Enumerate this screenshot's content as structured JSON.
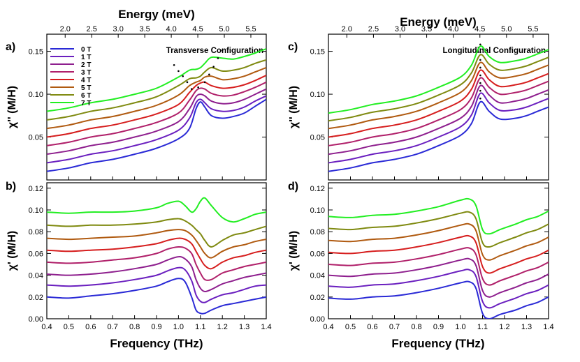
{
  "figure": {
    "xlabel": "Frequency (THz)",
    "top_axis_label": "Energy (meV)"
  },
  "legend": {
    "entries": [
      "0 T",
      "1 T",
      "2 T",
      "3 T",
      "4 T",
      "5 T",
      "6 T",
      "7 T"
    ],
    "colors": [
      "#2a2ad6",
      "#6a1fbf",
      "#8e1f8e",
      "#b0206a",
      "#d61e1e",
      "#b05a10",
      "#7f8a10",
      "#22ee22"
    ]
  },
  "chart_data": [
    {
      "panel": "a)",
      "type": "line",
      "annotation": "Transverse Configuration",
      "ylabel": "χ'' (M/H)",
      "xlim": [
        0.4,
        1.4
      ],
      "ylim": [
        0,
        0.17
      ],
      "yticks": [
        0.05,
        0.1,
        0.15
      ],
      "energy_ticks": [
        2.0,
        2.5,
        3.0,
        3.5,
        4.0,
        4.5,
        5.0,
        5.5
      ],
      "offset_per_field": 0.01,
      "x": [
        0.4,
        0.5,
        0.6,
        0.7,
        0.8,
        0.9,
        1.0,
        1.05,
        1.08,
        1.1,
        1.12,
        1.15,
        1.2,
        1.25,
        1.3,
        1.35,
        1.4
      ],
      "series": [
        {
          "name": "0 T",
          "values": [
            0.01,
            0.014,
            0.02,
            0.024,
            0.03,
            0.037,
            0.048,
            0.06,
            0.083,
            0.091,
            0.085,
            0.075,
            0.072,
            0.074,
            0.078,
            0.086,
            0.094
          ]
        },
        {
          "name": "1 T",
          "values": [
            0.02,
            0.024,
            0.03,
            0.034,
            0.04,
            0.047,
            0.058,
            0.072,
            0.09,
            0.094,
            0.09,
            0.083,
            0.08,
            0.081,
            0.085,
            0.092,
            0.098
          ]
        },
        {
          "name": "2 T",
          "values": [
            0.03,
            0.034,
            0.04,
            0.044,
            0.05,
            0.057,
            0.068,
            0.083,
            0.097,
            0.1,
            0.098,
            0.092,
            0.089,
            0.09,
            0.094,
            0.1,
            0.106
          ]
        },
        {
          "name": "3 T",
          "values": [
            0.04,
            0.044,
            0.05,
            0.054,
            0.06,
            0.067,
            0.078,
            0.093,
            0.104,
            0.107,
            0.106,
            0.101,
            0.098,
            0.099,
            0.103,
            0.108,
            0.114
          ]
        },
        {
          "name": "4 T",
          "values": [
            0.05,
            0.054,
            0.06,
            0.064,
            0.07,
            0.077,
            0.088,
            0.102,
            0.11,
            0.113,
            0.114,
            0.11,
            0.107,
            0.108,
            0.111,
            0.116,
            0.122
          ]
        },
        {
          "name": "5 T",
          "values": [
            0.06,
            0.064,
            0.07,
            0.074,
            0.08,
            0.087,
            0.099,
            0.11,
            0.114,
            0.116,
            0.12,
            0.121,
            0.117,
            0.118,
            0.121,
            0.126,
            0.131
          ]
        },
        {
          "name": "6 T",
          "values": [
            0.07,
            0.074,
            0.08,
            0.084,
            0.09,
            0.097,
            0.11,
            0.118,
            0.119,
            0.121,
            0.126,
            0.131,
            0.127,
            0.128,
            0.131,
            0.136,
            0.14
          ]
        },
        {
          "name": "7 T",
          "values": [
            0.08,
            0.084,
            0.09,
            0.094,
            0.1,
            0.107,
            0.12,
            0.128,
            0.129,
            0.131,
            0.136,
            0.143,
            0.142,
            0.141,
            0.144,
            0.148,
            0.153
          ]
        }
      ],
      "peak_markers": [
        [
          0.98,
          0.134
        ],
        [
          1.0,
          0.127
        ],
        [
          1.02,
          0.121
        ],
        [
          1.04,
          0.114
        ],
        [
          1.06,
          0.106
        ],
        [
          1.09,
          0.108
        ],
        [
          1.12,
          0.114
        ],
        [
          1.14,
          0.123
        ],
        [
          1.16,
          0.132
        ],
        [
          1.18,
          0.142
        ],
        [
          1.2,
          0.151
        ]
      ]
    },
    {
      "panel": "b)",
      "type": "line",
      "ylabel": "χ' (M/H)",
      "xlim": [
        0.4,
        1.4
      ],
      "ylim": [
        0,
        0.125
      ],
      "yticks": [
        0.0,
        0.02,
        0.04,
        0.06,
        0.08,
        0.1,
        0.12
      ],
      "xticks": [
        0.4,
        0.5,
        0.6,
        0.7,
        0.8,
        0.9,
        1.0,
        1.1,
        1.2,
        1.3,
        1.4
      ],
      "offset_per_field": 0.011,
      "x": [
        0.4,
        0.5,
        0.6,
        0.7,
        0.8,
        0.9,
        0.95,
        1.0,
        1.03,
        1.06,
        1.08,
        1.1,
        1.12,
        1.15,
        1.2,
        1.25,
        1.3,
        1.35,
        1.4
      ],
      "series": [
        {
          "name": "0 T",
          "values": [
            0.02,
            0.019,
            0.021,
            0.023,
            0.026,
            0.03,
            0.034,
            0.037,
            0.034,
            0.02,
            0.008,
            0.005,
            0.005,
            0.008,
            0.012,
            0.014,
            0.016,
            0.018,
            0.02
          ]
        },
        {
          "name": "1 T",
          "values": [
            0.031,
            0.03,
            0.031,
            0.033,
            0.036,
            0.04,
            0.044,
            0.047,
            0.045,
            0.035,
            0.022,
            0.016,
            0.015,
            0.018,
            0.022,
            0.024,
            0.027,
            0.03,
            0.031
          ]
        },
        {
          "name": "2 T",
          "values": [
            0.041,
            0.04,
            0.041,
            0.043,
            0.046,
            0.05,
            0.054,
            0.057,
            0.055,
            0.048,
            0.036,
            0.028,
            0.025,
            0.027,
            0.032,
            0.035,
            0.038,
            0.04,
            0.042
          ]
        },
        {
          "name": "3 T",
          "values": [
            0.052,
            0.051,
            0.052,
            0.054,
            0.056,
            0.06,
            0.064,
            0.066,
            0.065,
            0.06,
            0.05,
            0.042,
            0.036,
            0.036,
            0.042,
            0.045,
            0.048,
            0.05,
            0.052
          ]
        },
        {
          "name": "4 T",
          "values": [
            0.063,
            0.062,
            0.063,
            0.064,
            0.066,
            0.069,
            0.072,
            0.074,
            0.073,
            0.069,
            0.062,
            0.055,
            0.049,
            0.046,
            0.052,
            0.056,
            0.058,
            0.061,
            0.063
          ]
        },
        {
          "name": "5 T",
          "values": [
            0.074,
            0.073,
            0.074,
            0.075,
            0.076,
            0.079,
            0.081,
            0.082,
            0.081,
            0.077,
            0.072,
            0.066,
            0.06,
            0.056,
            0.062,
            0.066,
            0.068,
            0.071,
            0.073
          ]
        },
        {
          "name": "6 T",
          "values": [
            0.086,
            0.085,
            0.086,
            0.086,
            0.087,
            0.089,
            0.091,
            0.092,
            0.09,
            0.086,
            0.082,
            0.078,
            0.072,
            0.066,
            0.072,
            0.077,
            0.079,
            0.082,
            0.085
          ]
        },
        {
          "name": "7 T",
          "values": [
            0.098,
            0.097,
            0.098,
            0.098,
            0.099,
            0.102,
            0.106,
            0.108,
            0.104,
            0.098,
            0.101,
            0.108,
            0.111,
            0.104,
            0.093,
            0.089,
            0.092,
            0.096,
            0.098
          ]
        }
      ]
    },
    {
      "panel": "c)",
      "type": "line",
      "annotation": "Longitudinal Configuration",
      "ylabel": "χ'' (M/H)",
      "xlim": [
        0.4,
        1.4
      ],
      "ylim": [
        0,
        0.17
      ],
      "yticks": [
        0.05,
        0.1,
        0.15
      ],
      "energy_ticks": [
        2.0,
        2.5,
        3.0,
        3.5,
        4.0,
        4.5,
        5.0,
        5.5
      ],
      "offset_per_field": 0.01,
      "x": [
        0.4,
        0.5,
        0.6,
        0.7,
        0.8,
        0.9,
        1.0,
        1.05,
        1.09,
        1.13,
        1.18,
        1.25,
        1.3,
        1.35,
        1.4
      ],
      "series": [
        {
          "name": "0 T",
          "values": [
            0.01,
            0.014,
            0.02,
            0.024,
            0.03,
            0.04,
            0.052,
            0.066,
            0.091,
            0.08,
            0.071,
            0.072,
            0.075,
            0.08,
            0.085
          ]
        },
        {
          "name": "1 T",
          "values": [
            0.02,
            0.024,
            0.03,
            0.034,
            0.04,
            0.05,
            0.062,
            0.076,
            0.101,
            0.09,
            0.081,
            0.082,
            0.085,
            0.09,
            0.095
          ]
        },
        {
          "name": "2 T",
          "values": [
            0.03,
            0.034,
            0.04,
            0.044,
            0.05,
            0.06,
            0.072,
            0.086,
            0.11,
            0.099,
            0.09,
            0.092,
            0.095,
            0.1,
            0.105
          ]
        },
        {
          "name": "3 T",
          "values": [
            0.04,
            0.044,
            0.05,
            0.054,
            0.06,
            0.07,
            0.082,
            0.096,
            0.119,
            0.108,
            0.1,
            0.102,
            0.105,
            0.11,
            0.115
          ]
        },
        {
          "name": "4 T",
          "values": [
            0.05,
            0.054,
            0.06,
            0.064,
            0.07,
            0.08,
            0.092,
            0.106,
            0.128,
            0.117,
            0.109,
            0.111,
            0.114,
            0.119,
            0.124
          ]
        },
        {
          "name": "5 T",
          "values": [
            0.06,
            0.064,
            0.07,
            0.074,
            0.08,
            0.09,
            0.102,
            0.116,
            0.137,
            0.126,
            0.119,
            0.121,
            0.124,
            0.129,
            0.134
          ]
        },
        {
          "name": "6 T",
          "values": [
            0.069,
            0.073,
            0.079,
            0.083,
            0.089,
            0.099,
            0.111,
            0.125,
            0.146,
            0.135,
            0.128,
            0.13,
            0.133,
            0.138,
            0.143
          ]
        },
        {
          "name": "7 T",
          "values": [
            0.078,
            0.082,
            0.088,
            0.092,
            0.098,
            0.108,
            0.12,
            0.134,
            0.156,
            0.144,
            0.137,
            0.139,
            0.142,
            0.147,
            0.152
          ]
        }
      ],
      "peak_markers": [
        [
          1.09,
          0.095
        ],
        [
          1.09,
          0.104
        ],
        [
          1.09,
          0.113
        ],
        [
          1.09,
          0.122
        ],
        [
          1.09,
          0.131
        ],
        [
          1.09,
          0.14
        ],
        [
          1.09,
          0.149
        ],
        [
          1.09,
          0.158
        ]
      ]
    },
    {
      "panel": "d)",
      "type": "line",
      "ylabel": "χ' (M/H)",
      "xlim": [
        0.4,
        1.4
      ],
      "ylim": [
        0,
        0.125
      ],
      "yticks": [
        0.0,
        0.02,
        0.04,
        0.06,
        0.08,
        0.1,
        0.12
      ],
      "xticks": [
        0.4,
        0.5,
        0.6,
        0.7,
        0.8,
        0.9,
        1.0,
        1.1,
        1.2,
        1.3,
        1.4
      ],
      "offset_per_field": 0.011,
      "x": [
        0.4,
        0.5,
        0.6,
        0.7,
        0.8,
        0.9,
        1.0,
        1.04,
        1.07,
        1.1,
        1.13,
        1.18,
        1.25,
        1.3,
        1.35,
        1.4
      ],
      "series": [
        {
          "name": "0 T",
          "values": [
            0.019,
            0.018,
            0.02,
            0.021,
            0.024,
            0.028,
            0.033,
            0.034,
            0.028,
            0.005,
            0.0,
            0.004,
            0.008,
            0.012,
            0.015,
            0.02
          ]
        },
        {
          "name": "1 T",
          "values": [
            0.03,
            0.029,
            0.031,
            0.032,
            0.035,
            0.039,
            0.044,
            0.045,
            0.039,
            0.016,
            0.01,
            0.014,
            0.019,
            0.023,
            0.026,
            0.031
          ]
        },
        {
          "name": "2 T",
          "values": [
            0.04,
            0.039,
            0.041,
            0.042,
            0.045,
            0.049,
            0.054,
            0.055,
            0.049,
            0.026,
            0.02,
            0.024,
            0.029,
            0.033,
            0.036,
            0.041
          ]
        },
        {
          "name": "3 T",
          "values": [
            0.05,
            0.049,
            0.051,
            0.052,
            0.055,
            0.059,
            0.064,
            0.065,
            0.059,
            0.037,
            0.031,
            0.035,
            0.04,
            0.044,
            0.047,
            0.052
          ]
        },
        {
          "name": "4 T",
          "values": [
            0.061,
            0.06,
            0.062,
            0.063,
            0.066,
            0.07,
            0.075,
            0.076,
            0.07,
            0.048,
            0.042,
            0.046,
            0.051,
            0.055,
            0.058,
            0.063
          ]
        },
        {
          "name": "5 T",
          "values": [
            0.072,
            0.071,
            0.073,
            0.074,
            0.077,
            0.081,
            0.086,
            0.087,
            0.081,
            0.059,
            0.054,
            0.058,
            0.063,
            0.067,
            0.07,
            0.075
          ]
        },
        {
          "name": "6 T",
          "values": [
            0.083,
            0.082,
            0.084,
            0.085,
            0.088,
            0.092,
            0.097,
            0.098,
            0.092,
            0.07,
            0.066,
            0.07,
            0.075,
            0.079,
            0.082,
            0.087
          ]
        },
        {
          "name": "7 T",
          "values": [
            0.094,
            0.093,
            0.095,
            0.096,
            0.099,
            0.103,
            0.109,
            0.11,
            0.104,
            0.082,
            0.078,
            0.082,
            0.087,
            0.091,
            0.094,
            0.099
          ]
        }
      ]
    }
  ]
}
